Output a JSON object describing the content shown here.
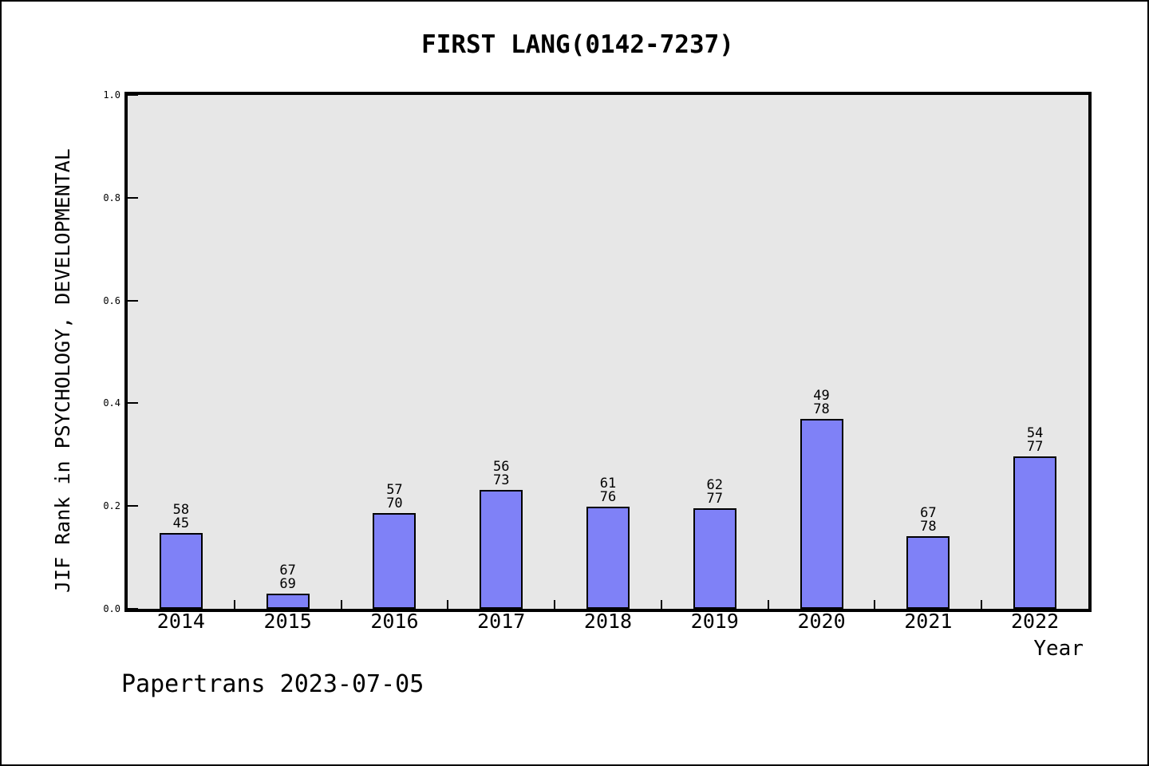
{
  "title": "FIRST LANG(0142-7237)",
  "watermark": "Papertrans 2023-07-05",
  "chart_data": {
    "type": "bar",
    "title": "FIRST LANG(0142-7237)",
    "xlabel": "Year",
    "ylabel": "JIF Rank in PSYCHOLOGY, DEVELOPMENTAL",
    "ylim": [
      0.0,
      1.0
    ],
    "yticks": [
      "0.0",
      "0.2",
      "0.4",
      "0.6",
      "0.8",
      "1.0"
    ],
    "grid": false,
    "legend": null,
    "categories": [
      "2014",
      "2015",
      "2016",
      "2017",
      "2018",
      "2019",
      "2020",
      "2021",
      "2022"
    ],
    "values": [
      0.147,
      0.03,
      0.186,
      0.231,
      0.198,
      0.195,
      0.37,
      0.142,
      0.297
    ],
    "bar_labels": [
      [
        "58",
        "45"
      ],
      [
        "67",
        "69"
      ],
      [
        "57",
        "70"
      ],
      [
        "56",
        "73"
      ],
      [
        "61",
        "76"
      ],
      [
        "62",
        "77"
      ],
      [
        "49",
        "78"
      ],
      [
        "67",
        "78"
      ],
      [
        "54",
        "77"
      ]
    ],
    "bar_color": "#7F81F7",
    "bar_border_color": "#000000",
    "plot_bg_color": "#E7E7E7",
    "page_bg_color": "#FFFFFF"
  }
}
